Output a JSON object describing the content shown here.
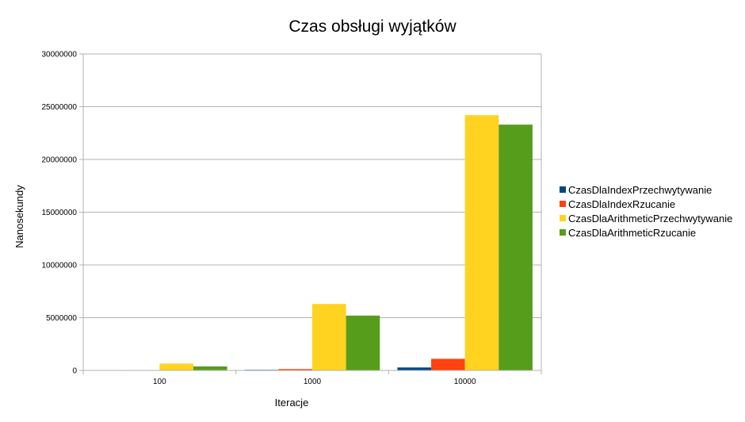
{
  "chart_data": {
    "type": "bar",
    "title": "Czas obsługi wyjątków",
    "xlabel": "Iteracje",
    "ylabel": "Nanosekundy",
    "categories": [
      "100",
      "1000",
      "10000"
    ],
    "ylim": [
      0,
      30000000
    ],
    "yticks": [
      "0",
      "5000000",
      "10000000",
      "15000000",
      "20000000",
      "25000000",
      "30000000"
    ],
    "grid": true,
    "legend_position": "right",
    "series": [
      {
        "name": "CzasDlaIndexPrzechwytywanie",
        "color": "#004586",
        "values": [
          15000,
          60000,
          280000
        ]
      },
      {
        "name": "CzasDlaIndexRzucanie",
        "color": "#ff420e",
        "values": [
          40000,
          130000,
          1100000
        ]
      },
      {
        "name": "CzasDlaArithmeticPrzechwytywanie",
        "color": "#ffd320",
        "values": [
          650000,
          6300000,
          24200000
        ]
      },
      {
        "name": "CzasDlaArithmeticRzucanie",
        "color": "#579d1c",
        "values": [
          380000,
          5200000,
          23300000
        ]
      }
    ]
  }
}
